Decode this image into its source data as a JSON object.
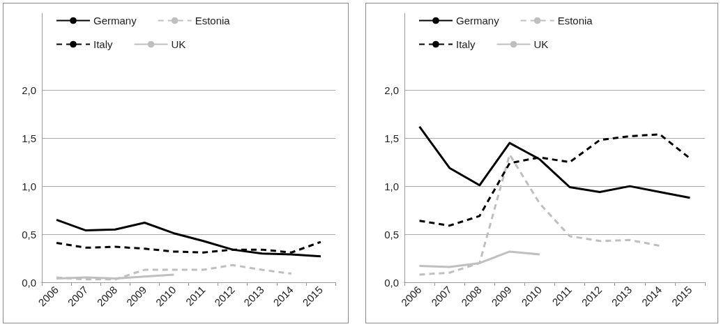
{
  "chart_data": [
    {
      "type": "line",
      "categories": [
        "2006",
        "2007",
        "2008",
        "2009",
        "2010",
        "2011",
        "2012",
        "2013",
        "2014",
        "2015"
      ],
      "ylim": [
        0,
        2.8
      ],
      "yticks": [
        {
          "value": 0,
          "label": "0,0"
        },
        {
          "value": 0.5,
          "label": "0,5"
        },
        {
          "value": 1,
          "label": "1,0"
        },
        {
          "value": 1.5,
          "label": "1,5"
        },
        {
          "value": 2,
          "label": "2,0"
        }
      ],
      "grid": "y",
      "legend": "top",
      "marker": "none",
      "series": [
        {
          "name": "Germany",
          "color": "#000000",
          "line_style": "solid",
          "values": [
            0.65,
            0.54,
            0.55,
            0.62,
            0.51,
            0.43,
            0.34,
            0.3,
            0.29,
            0.27
          ]
        },
        {
          "name": "Estonia",
          "color": "#bfbfbf",
          "line_style": "dashed",
          "values": [
            0.05,
            0.03,
            0.03,
            0.13,
            0.13,
            0.13,
            0.18,
            0.13,
            0.09,
            null
          ]
        },
        {
          "name": "Italy",
          "color": "#000000",
          "line_style": "dashed",
          "values": [
            0.41,
            0.36,
            0.37,
            0.35,
            0.32,
            0.31,
            0.34,
            0.34,
            0.31,
            0.42
          ]
        },
        {
          "name": "UK",
          "color": "#bfbfbf",
          "line_style": "solid",
          "values": [
            0.04,
            0.05,
            0.04,
            0.06,
            0.08,
            null,
            null,
            null,
            null,
            null
          ]
        }
      ]
    },
    {
      "type": "line",
      "categories": [
        "2006",
        "2007",
        "2008",
        "2009",
        "2010",
        "2011",
        "2012",
        "2013",
        "2014",
        "2015"
      ],
      "ylim": [
        0,
        2.8
      ],
      "yticks": [
        {
          "value": 0,
          "label": "0,0"
        },
        {
          "value": 0.5,
          "label": "0,5"
        },
        {
          "value": 1,
          "label": "1,0"
        },
        {
          "value": 1.5,
          "label": "1,5"
        },
        {
          "value": 2,
          "label": "2,0"
        }
      ],
      "grid": "y",
      "legend": "top",
      "marker": "none",
      "series": [
        {
          "name": "Germany",
          "color": "#000000",
          "line_style": "solid",
          "values": [
            1.62,
            1.19,
            1.01,
            1.45,
            1.28,
            0.99,
            0.94,
            1.0,
            0.94,
            0.88
          ]
        },
        {
          "name": "Estonia",
          "color": "#bfbfbf",
          "line_style": "dashed",
          "values": [
            0.08,
            0.1,
            0.2,
            1.33,
            0.82,
            0.48,
            0.43,
            0.44,
            0.38,
            null
          ]
        },
        {
          "name": "Italy",
          "color": "#000000",
          "line_style": "dashed",
          "values": [
            0.64,
            0.59,
            0.69,
            1.24,
            1.3,
            1.25,
            1.48,
            1.52,
            1.54,
            1.29
          ]
        },
        {
          "name": "UK",
          "color": "#bfbfbf",
          "line_style": "solid",
          "values": [
            0.17,
            0.16,
            0.2,
            0.32,
            0.29,
            null,
            null,
            null,
            null,
            null
          ]
        }
      ]
    }
  ]
}
